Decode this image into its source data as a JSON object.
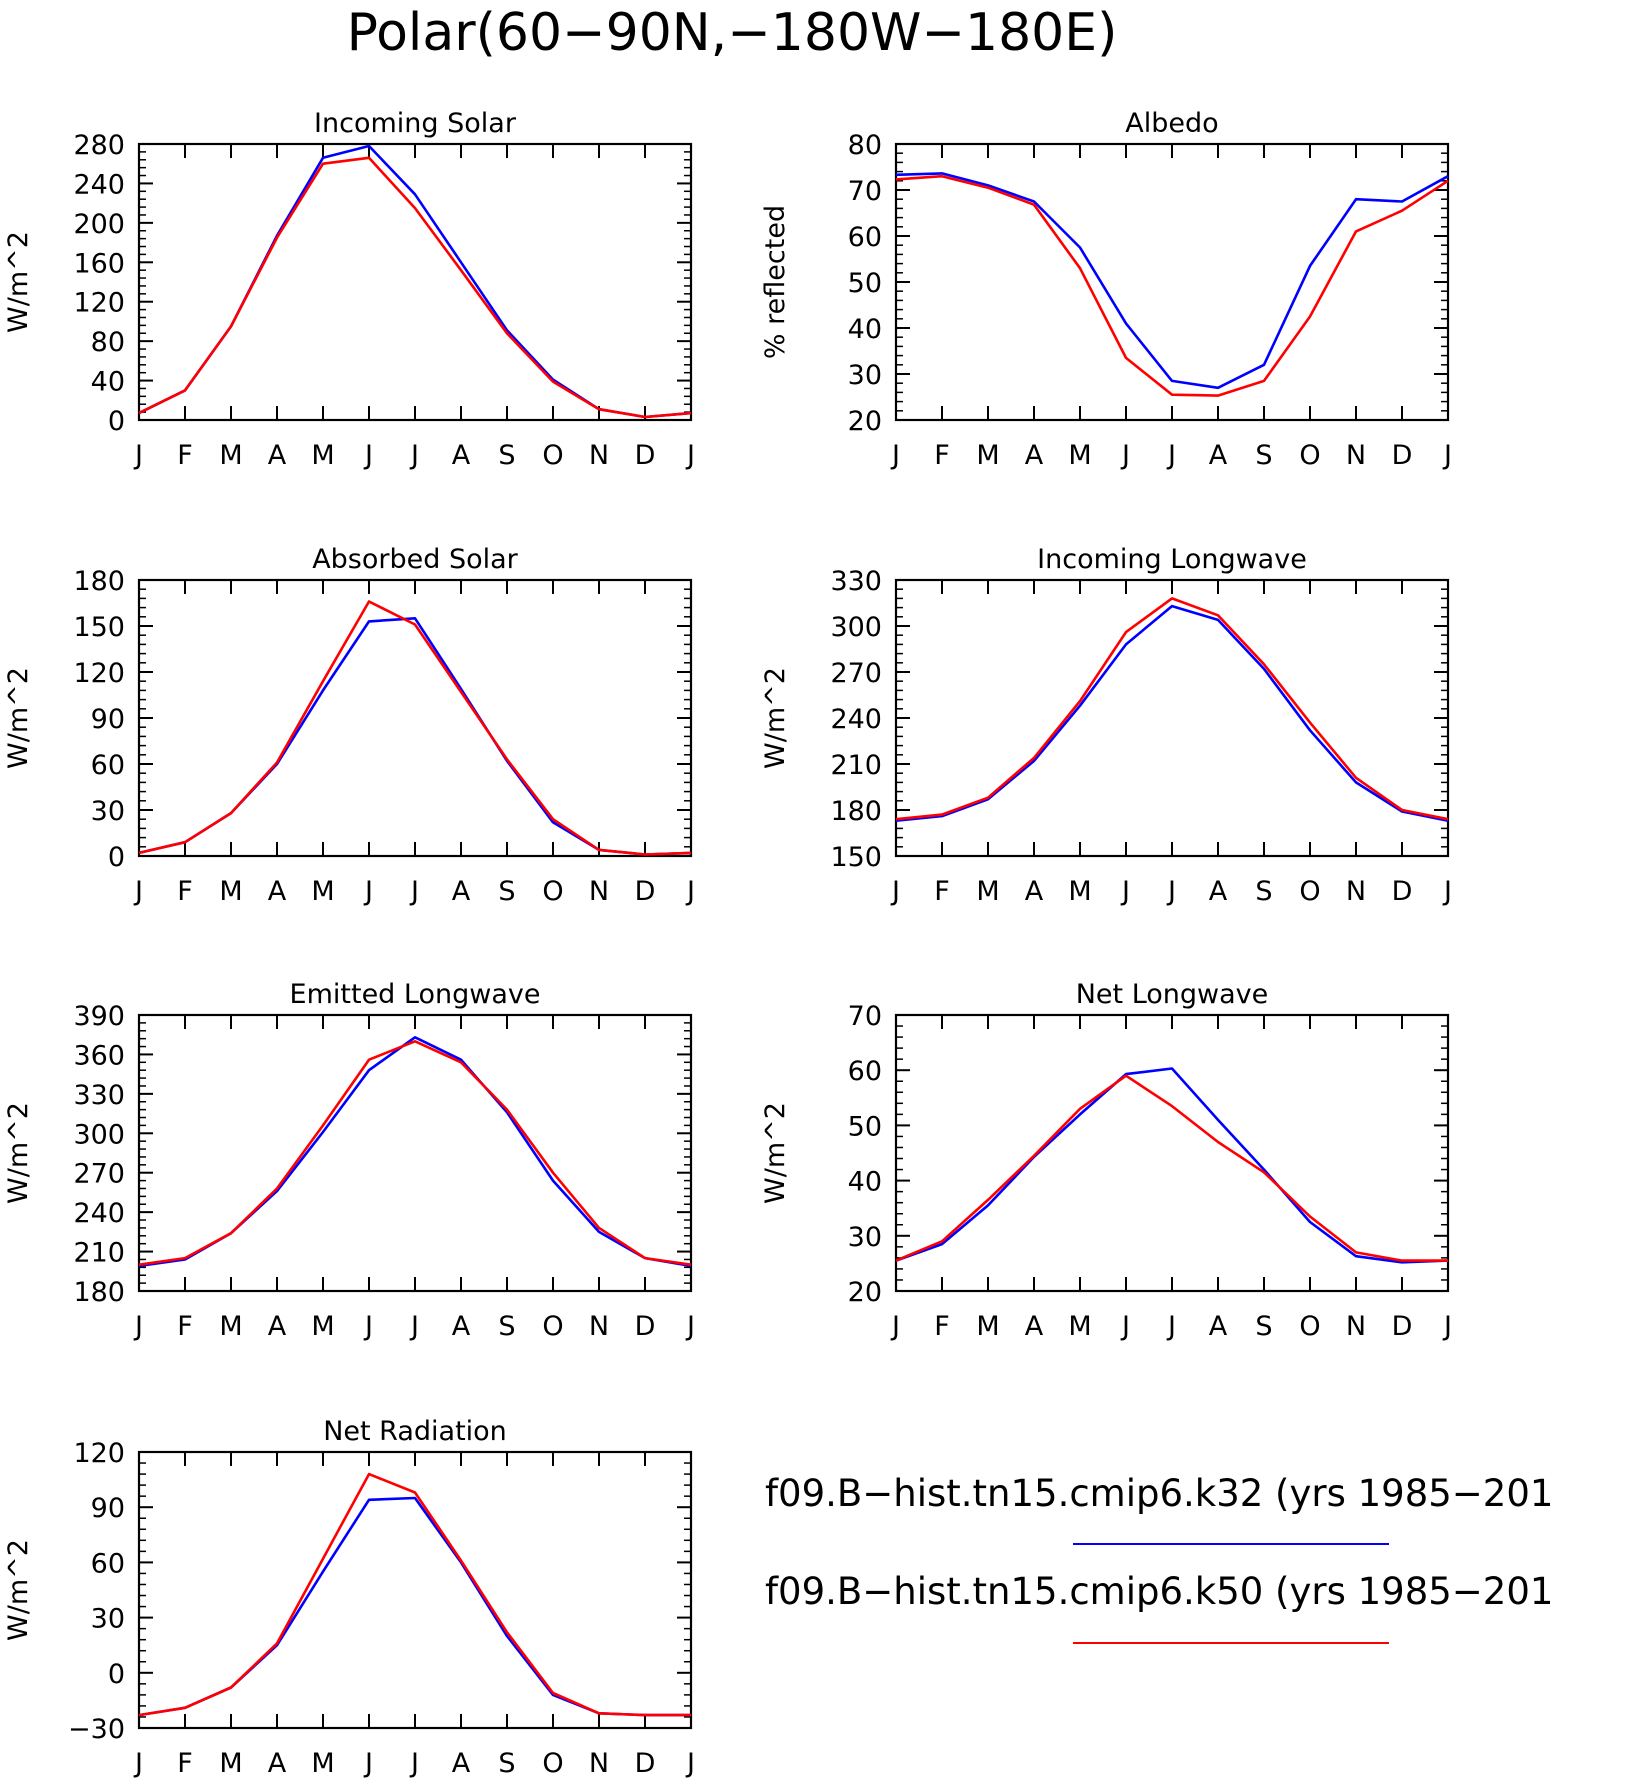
{
  "page": {
    "title": "Polar(60−90N,−180W−180E)"
  },
  "colors": {
    "k32": "#0000ff",
    "k50": "#ff0000",
    "axis": "#000000"
  },
  "legend": {
    "entries": [
      {
        "label": "f09.B−hist.tn15.cmip6.k32 (yrs 1985−201",
        "color": "#0000ff"
      },
      {
        "label": "f09.B−hist.tn15.cmip6.k50 (yrs 1985−201",
        "color": "#ff0000"
      }
    ]
  },
  "chart_data": [
    {
      "type": "line",
      "title": "Incoming Solar",
      "ylabel": "W/m^2",
      "xlabel": "",
      "categories": [
        "J",
        "F",
        "M",
        "A",
        "M",
        "J",
        "J",
        "A",
        "S",
        "O",
        "N",
        "D",
        "J"
      ],
      "ylim": [
        0,
        280
      ],
      "yticks": [
        0,
        40,
        80,
        120,
        160,
        200,
        240,
        280
      ],
      "ytick_labels": [
        "0",
        "40",
        "80",
        "120",
        "160",
        "200",
        "240",
        "280"
      ],
      "grid": false,
      "series": [
        {
          "color": "#0000ff",
          "values": [
            7,
            30,
            95,
            187,
            266,
            278,
            229,
            160,
            91,
            41,
            11,
            3,
            7
          ]
        },
        {
          "color": "#ff0000",
          "values": [
            7,
            30,
            95,
            185,
            260,
            266,
            215,
            152,
            88,
            39,
            11,
            3,
            7
          ]
        }
      ]
    },
    {
      "type": "line",
      "title": "Albedo",
      "ylabel": "% reflected",
      "xlabel": "",
      "categories": [
        "J",
        "F",
        "M",
        "A",
        "M",
        "J",
        "J",
        "A",
        "S",
        "O",
        "N",
        "D",
        "J"
      ],
      "ylim": [
        20,
        80
      ],
      "yticks": [
        20,
        30,
        40,
        50,
        60,
        70,
        80
      ],
      "ytick_labels": [
        "20",
        "30",
        "40",
        "50",
        "60",
        "70",
        "80"
      ],
      "grid": false,
      "series": [
        {
          "color": "#0000ff",
          "values": [
            73.3,
            73.6,
            71.0,
            67.5,
            57.5,
            41.0,
            28.5,
            27.0,
            32.0,
            53.5,
            68.0,
            67.5,
            73.0
          ]
        },
        {
          "color": "#ff0000",
          "values": [
            72.3,
            73.0,
            70.5,
            66.8,
            53.0,
            33.5,
            25.5,
            25.3,
            28.5,
            42.5,
            61.0,
            65.5,
            72.0
          ]
        }
      ]
    },
    {
      "type": "line",
      "title": "Absorbed Solar",
      "ylabel": "W/m^2",
      "xlabel": "",
      "categories": [
        "J",
        "F",
        "M",
        "A",
        "M",
        "J",
        "J",
        "A",
        "S",
        "O",
        "N",
        "D",
        "J"
      ],
      "ylim": [
        0,
        180
      ],
      "yticks": [
        0,
        30,
        60,
        90,
        120,
        150,
        180
      ],
      "ytick_labels": [
        "0",
        "30",
        "60",
        "90",
        "120",
        "150",
        "180"
      ],
      "grid": false,
      "series": [
        {
          "color": "#0000ff",
          "values": [
            2,
            9,
            28,
            60,
            108,
            153,
            155,
            109,
            62,
            22,
            4,
            1,
            2
          ]
        },
        {
          "color": "#ff0000",
          "values": [
            2,
            9,
            28,
            61,
            114,
            166,
            151,
            107,
            63,
            24,
            4,
            1,
            2
          ]
        }
      ]
    },
    {
      "type": "line",
      "title": "Incoming Longwave",
      "ylabel": "W/m^2",
      "xlabel": "",
      "categories": [
        "J",
        "F",
        "M",
        "A",
        "M",
        "J",
        "J",
        "A",
        "S",
        "O",
        "N",
        "D",
        "J"
      ],
      "ylim": [
        150,
        330
      ],
      "yticks": [
        150,
        180,
        210,
        240,
        270,
        300,
        330
      ],
      "ytick_labels": [
        "150",
        "180",
        "210",
        "240",
        "270",
        "300",
        "330"
      ],
      "grid": false,
      "series": [
        {
          "color": "#0000ff",
          "values": [
            173,
            176,
            187,
            212,
            248,
            288,
            313,
            304,
            272,
            232,
            198,
            179,
            173
          ]
        },
        {
          "color": "#ff0000",
          "values": [
            174,
            177,
            188,
            214,
            251,
            296,
            318,
            307,
            275,
            237,
            201,
            180,
            174
          ]
        }
      ]
    },
    {
      "type": "line",
      "title": "Emitted Longwave",
      "ylabel": "W/m^2",
      "xlabel": "",
      "categories": [
        "J",
        "F",
        "M",
        "A",
        "M",
        "J",
        "J",
        "A",
        "S",
        "O",
        "N",
        "D",
        "J"
      ],
      "ylim": [
        180,
        390
      ],
      "yticks": [
        180,
        210,
        240,
        270,
        300,
        330,
        360,
        390
      ],
      "ytick_labels": [
        "180",
        "210",
        "240",
        "270",
        "300",
        "330",
        "360",
        "390"
      ],
      "grid": false,
      "series": [
        {
          "color": "#0000ff",
          "values": [
            199,
            204,
            224,
            256,
            301,
            348,
            373,
            356,
            316,
            264,
            225,
            205,
            199
          ]
        },
        {
          "color": "#ff0000",
          "values": [
            200,
            205,
            224,
            258,
            306,
            356,
            370,
            354,
            318,
            270,
            228,
            205,
            200
          ]
        }
      ]
    },
    {
      "type": "line",
      "title": "Net Longwave",
      "ylabel": "W/m^2",
      "xlabel": "",
      "categories": [
        "J",
        "F",
        "M",
        "A",
        "M",
        "J",
        "J",
        "A",
        "S",
        "O",
        "N",
        "D",
        "J"
      ],
      "ylim": [
        20,
        70
      ],
      "yticks": [
        20,
        30,
        40,
        50,
        60,
        70
      ],
      "ytick_labels": [
        "20",
        "30",
        "40",
        "50",
        "60",
        "70"
      ],
      "grid": false,
      "series": [
        {
          "color": "#0000ff",
          "values": [
            25.5,
            28.5,
            35.5,
            44.3,
            52.0,
            59.3,
            60.3,
            51.0,
            42.0,
            32.5,
            26.3,
            25.2,
            25.5
          ]
        },
        {
          "color": "#ff0000",
          "values": [
            25.5,
            29.0,
            36.5,
            44.5,
            53.0,
            59.0,
            53.5,
            47.0,
            41.5,
            33.5,
            27.0,
            25.5,
            25.5
          ]
        }
      ]
    },
    {
      "type": "line",
      "title": "Net Radiation",
      "ylabel": "W/m^2",
      "xlabel": "",
      "categories": [
        "J",
        "F",
        "M",
        "A",
        "M",
        "J",
        "J",
        "A",
        "S",
        "O",
        "N",
        "D",
        "J"
      ],
      "ylim": [
        -30,
        120
      ],
      "yticks": [
        -30,
        0,
        30,
        60,
        90,
        120
      ],
      "ytick_labels": [
        "−30",
        "0",
        "30",
        "60",
        "90",
        "120"
      ],
      "grid": false,
      "series": [
        {
          "color": "#0000ff",
          "values": [
            -23,
            -19,
            -8,
            15,
            55,
            94,
            95,
            60,
            20,
            -12,
            -22,
            -23,
            -23
          ]
        },
        {
          "color": "#ff0000",
          "values": [
            -23,
            -19,
            -8,
            16,
            62,
            108,
            98,
            61,
            22,
            -11,
            -22,
            -23,
            -23
          ]
        }
      ]
    }
  ]
}
